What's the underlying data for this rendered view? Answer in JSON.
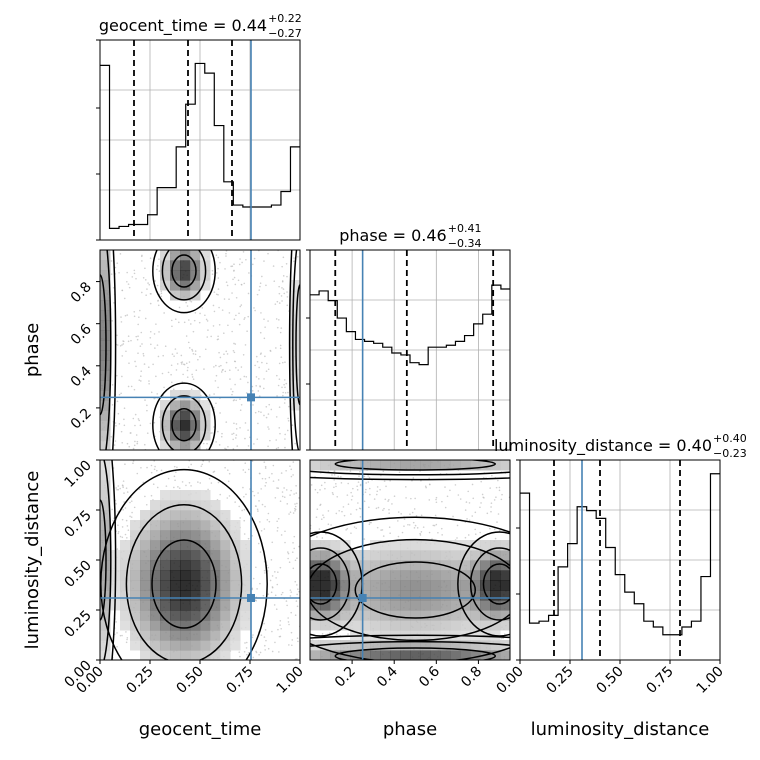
{
  "chart_data": {
    "type": "corner",
    "parameters": [
      "geocent_time",
      "phase",
      "luminosity_distance"
    ],
    "axis_labels": {
      "x": [
        "geocent_time",
        "phase",
        "luminosity_distance"
      ],
      "y": [
        "phase",
        "luminosity_distance"
      ]
    },
    "truths": [
      0.755,
      0.25,
      0.31
    ],
    "ranges": [
      [
        0,
        1
      ],
      [
        0.0,
        0.95
      ],
      [
        0,
        1
      ]
    ],
    "ticks": {
      "geocent_time": [
        0.0,
        0.25,
        0.5,
        0.75,
        1.0
      ],
      "phase": [
        0.2,
        0.4,
        0.6,
        0.8
      ],
      "luminosity_distance": [
        0.0,
        0.25,
        0.5,
        0.75,
        1.0
      ]
    },
    "tick_labels": {
      "geocent_time": [
        "0.00",
        "0.25",
        "0.50",
        "0.75",
        "1.00"
      ],
      "phase": [
        "0.2",
        "0.4",
        "0.6",
        "0.8"
      ],
      "luminosity_distance": [
        "0.00",
        "0.25",
        "0.50",
        "0.75",
        "1.00"
      ]
    },
    "titles": [
      {
        "param": "geocent_time",
        "text": "geocent_time = 0.44",
        "plus": "+0.22",
        "minus": "−0.27"
      },
      {
        "param": "phase",
        "text": "phase = 0.46",
        "plus": "+0.41",
        "minus": "−0.34"
      },
      {
        "param": "luminosity_distance",
        "text": "luminosity_distance = 0.40",
        "plus": "+0.40",
        "minus": "−0.23"
      }
    ],
    "quantiles": {
      "geocent_time": [
        0.17,
        0.44,
        0.66
      ],
      "phase": [
        0.12,
        0.46,
        0.87
      ],
      "luminosity_distance": [
        0.17,
        0.4,
        0.8
      ]
    },
    "histograms": {
      "geocent_time": {
        "range": [
          0,
          1
        ],
        "counts": [
          0.9,
          0.06,
          0.07,
          0.08,
          0.08,
          0.13,
          0.27,
          0.27,
          0.48,
          0.7,
          0.91,
          0.86,
          0.59,
          0.3,
          0.18,
          0.17,
          0.17,
          0.17,
          0.18,
          0.25,
          0.48
        ]
      },
      "phase": {
        "range": [
          0.0,
          0.95
        ],
        "counts": [
          0.8,
          0.82,
          0.77,
          0.68,
          0.61,
          0.57,
          0.56,
          0.55,
          0.53,
          0.5,
          0.49,
          0.45,
          0.44,
          0.53,
          0.53,
          0.54,
          0.56,
          0.59,
          0.65,
          0.7,
          0.85,
          0.83
        ]
      },
      "luminosity_distance": {
        "range": [
          0,
          1
        ],
        "counts": [
          0.86,
          0.19,
          0.2,
          0.23,
          0.48,
          0.6,
          0.79,
          0.77,
          0.73,
          0.58,
          0.44,
          0.35,
          0.29,
          0.2,
          0.17,
          0.13,
          0.13,
          0.17,
          0.2,
          0.43,
          0.96
        ]
      }
    },
    "density_2d": [
      {
        "x": "geocent_time",
        "y": "phase",
        "peaks": [
          {
            "x": 0.42,
            "y": 0.12,
            "sx": 0.06,
            "sy": 0.08,
            "w": 1.0
          },
          {
            "x": 0.42,
            "y": 0.85,
            "sx": 0.06,
            "sy": 0.08,
            "w": 0.9
          },
          {
            "x": 0.0,
            "y": 0.5,
            "sx": 0.03,
            "sy": 0.35,
            "w": 0.8
          },
          {
            "x": 1.0,
            "y": 0.5,
            "sx": 0.02,
            "sy": 0.3,
            "w": 0.4
          }
        ]
      },
      {
        "x": "geocent_time",
        "y": "luminosity_distance",
        "peaks": [
          {
            "x": 0.42,
            "y": 0.38,
            "sx": 0.16,
            "sy": 0.22,
            "w": 1.0
          },
          {
            "x": 0.0,
            "y": 0.5,
            "sx": 0.03,
            "sy": 0.3,
            "w": 0.5
          }
        ]
      },
      {
        "x": "phase",
        "y": "luminosity_distance",
        "peaks": [
          {
            "x": 0.05,
            "y": 0.38,
            "sx": 0.08,
            "sy": 0.1,
            "w": 1.0
          },
          {
            "x": 0.9,
            "y": 0.38,
            "sx": 0.08,
            "sy": 0.1,
            "w": 0.9
          },
          {
            "x": 0.5,
            "y": 0.35,
            "sx": 0.3,
            "sy": 0.14,
            "w": 0.5
          },
          {
            "x": 0.5,
            "y": 0.02,
            "sx": 0.4,
            "sy": 0.04,
            "w": 0.7
          },
          {
            "x": 0.5,
            "y": 0.98,
            "sx": 0.4,
            "sy": 0.03,
            "w": 0.4
          }
        ]
      }
    ],
    "colors": {
      "truth": "#4682b4",
      "hist": "#000000",
      "grid": "#b0b0b0",
      "scatter": "#bbbbbb"
    },
    "grid": true,
    "legend": "none"
  }
}
